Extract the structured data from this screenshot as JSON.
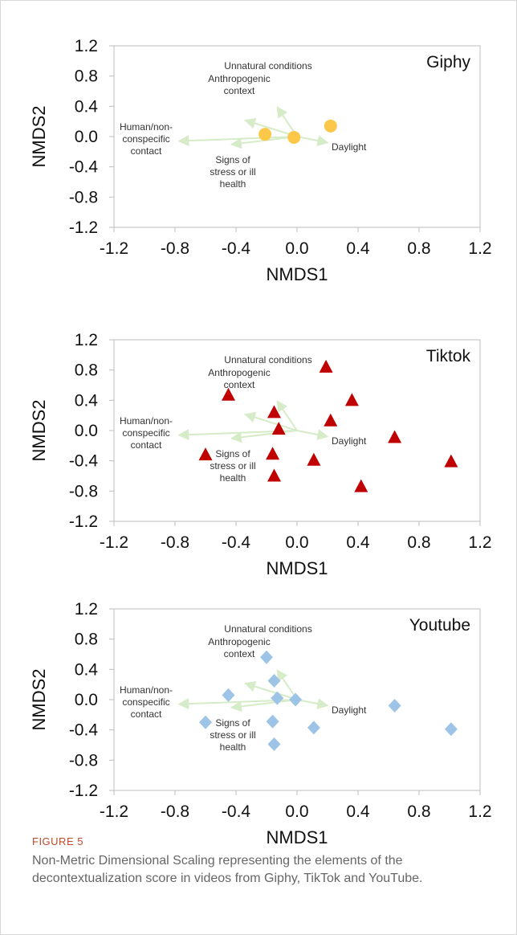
{
  "figure": {
    "label": "FIGURE 5",
    "caption": "Non-Metric Dimensional Scaling representing the elements of the decontextualization score in videos from Giphy, TikTok and YouTube."
  },
  "chart_data": [
    {
      "type": "scatter",
      "title": "Giphy",
      "xlabel": "NMDS1",
      "ylabel": "NMDS2",
      "xlim": [
        -1.2,
        1.2
      ],
      "ylim": [
        -1.2,
        1.2
      ],
      "xticks": [
        "-1.2",
        "-0.8",
        "-0.4",
        "0.0",
        "0.4",
        "0.8",
        "1.2"
      ],
      "yticks": [
        "1.2",
        "0.8",
        "0.4",
        "0.0",
        "-0.4",
        "-0.8",
        "-1.2"
      ],
      "marker": "circle",
      "color": "#fdc849",
      "points": [
        [
          -0.21,
          0.03
        ],
        [
          -0.02,
          -0.01
        ],
        [
          0.22,
          0.14
        ]
      ],
      "vectors": [
        {
          "label": "Unnatural conditions",
          "x": -0.26,
          "y": 0.78
        },
        {
          "label": "Anthropogenic context",
          "x": -0.68,
          "y": 0.43
        },
        {
          "label": "Human/non-conspecific contact",
          "x": -1.55,
          "y": -0.12
        },
        {
          "label": "Signs of stress or ill health",
          "x": -0.86,
          "y": -0.21
        },
        {
          "label": "Daylight",
          "x": 0.4,
          "y": -0.16
        }
      ]
    },
    {
      "type": "scatter",
      "title": "Tiktok",
      "xlabel": "NMDS1",
      "ylabel": "NMDS2",
      "xlim": [
        -1.2,
        1.2
      ],
      "ylim": [
        -1.2,
        1.2
      ],
      "xticks": [
        "-1.2",
        "-0.8",
        "-0.4",
        "0.0",
        "0.4",
        "0.8",
        "1.2"
      ],
      "yticks": [
        "1.2",
        "0.8",
        "0.4",
        "0.0",
        "-0.4",
        "-0.8",
        "-1.2"
      ],
      "marker": "triangle",
      "color": "#c00000",
      "points": [
        [
          0.19,
          0.84
        ],
        [
          -0.45,
          0.47
        ],
        [
          0.36,
          0.4
        ],
        [
          -0.15,
          0.24
        ],
        [
          0.22,
          0.13
        ],
        [
          -0.12,
          0.02
        ],
        [
          0.64,
          -0.09
        ],
        [
          -0.6,
          -0.32
        ],
        [
          -0.16,
          -0.31
        ],
        [
          0.11,
          -0.39
        ],
        [
          1.01,
          -0.41
        ],
        [
          -0.15,
          -0.6
        ],
        [
          0.42,
          -0.74
        ]
      ],
      "vectors": [
        {
          "label": "Unnatural conditions",
          "x": -0.26,
          "y": 0.78
        },
        {
          "label": "Anthropogenic context",
          "x": -0.68,
          "y": 0.43
        },
        {
          "label": "Human/non-conspecific contact",
          "x": -1.55,
          "y": -0.12
        },
        {
          "label": "Signs of stress or ill health",
          "x": -0.86,
          "y": -0.21
        },
        {
          "label": "Daylight",
          "x": 0.4,
          "y": -0.16
        }
      ]
    },
    {
      "type": "scatter",
      "title": "Youtube",
      "xlabel": "NMDS1",
      "ylabel": "NMDS2",
      "xlim": [
        -1.2,
        1.2
      ],
      "ylim": [
        -1.2,
        1.2
      ],
      "xticks": [
        "-1.2",
        "-0.8",
        "-0.4",
        "0.0",
        "0.4",
        "0.8",
        "1.2"
      ],
      "yticks": [
        "1.2",
        "0.8",
        "0.4",
        "0.0",
        "-0.4",
        "-0.8",
        "-1.2"
      ],
      "marker": "diamond",
      "color": "#9dc3e6",
      "points": [
        [
          -0.2,
          0.56
        ],
        [
          -0.15,
          0.25
        ],
        [
          -0.45,
          0.06
        ],
        [
          -0.13,
          0.02
        ],
        [
          -0.01,
          0.0
        ],
        [
          0.64,
          -0.08
        ],
        [
          -0.6,
          -0.3
        ],
        [
          -0.16,
          -0.29
        ],
        [
          0.11,
          -0.37
        ],
        [
          1.01,
          -0.39
        ],
        [
          -0.15,
          -0.59
        ]
      ],
      "vectors": [
        {
          "label": "Unnatural conditions",
          "x": -0.26,
          "y": 0.78
        },
        {
          "label": "Anthropogenic context",
          "x": -0.68,
          "y": 0.43
        },
        {
          "label": "Human/non-conspecific contact",
          "x": -1.55,
          "y": -0.12
        },
        {
          "label": "Signs of stress or ill health",
          "x": -0.86,
          "y": -0.21
        },
        {
          "label": "Daylight",
          "x": 0.4,
          "y": -0.16
        }
      ]
    }
  ]
}
